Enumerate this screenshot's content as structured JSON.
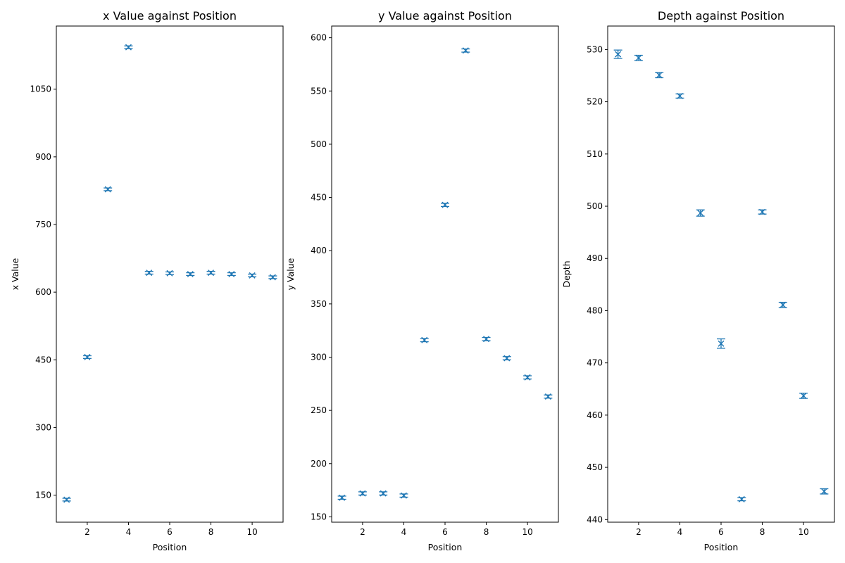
{
  "chart_data": [
    {
      "type": "scatter",
      "title": "x Value against Position",
      "xlabel": "Position",
      "ylabel": "x Value",
      "xlim": [
        0.5,
        11.5
      ],
      "ylim": [
        90,
        1190
      ],
      "xticks": [
        2,
        4,
        6,
        8,
        10
      ],
      "yticks": [
        150,
        300,
        450,
        600,
        750,
        900,
        1050
      ],
      "marker": "x with error bars",
      "color": "#1f77b4",
      "x": [
        1,
        2,
        3,
        4,
        5,
        6,
        7,
        8,
        9,
        10,
        11
      ],
      "y": [
        140,
        456,
        828,
        1143,
        643,
        642,
        640,
        643,
        640,
        637,
        633
      ],
      "yerr": [
        3,
        3,
        3,
        3,
        3,
        3,
        3,
        3,
        3,
        3,
        3
      ]
    },
    {
      "type": "scatter",
      "title": "y Value against Position",
      "xlabel": "Position",
      "ylabel": "y Value",
      "xlim": [
        0.5,
        11.5
      ],
      "ylim": [
        145,
        611
      ],
      "xticks": [
        2,
        4,
        6,
        8,
        10
      ],
      "yticks": [
        150,
        200,
        250,
        300,
        350,
        400,
        450,
        500,
        550,
        600
      ],
      "marker": "x with error bars",
      "color": "#1f77b4",
      "x": [
        1,
        2,
        3,
        4,
        5,
        6,
        7,
        8,
        9,
        10,
        11
      ],
      "y": [
        168,
        172,
        172,
        170,
        316,
        443,
        588,
        317,
        299,
        281,
        263
      ],
      "yerr": [
        1.5,
        1.5,
        1.5,
        1.5,
        1.5,
        1.5,
        1.5,
        1.5,
        1.5,
        1.5,
        1.5
      ]
    },
    {
      "type": "scatter",
      "title": "Depth against Position",
      "xlabel": "Position",
      "ylabel": "Depth",
      "xlim": [
        0.5,
        11.5
      ],
      "ylim": [
        439.5,
        534.5
      ],
      "xticks": [
        2,
        4,
        6,
        8,
        10
      ],
      "yticks": [
        440,
        450,
        460,
        470,
        480,
        490,
        500,
        510,
        520,
        530
      ],
      "marker": "x with error bars",
      "color": "#1f77b4",
      "x": [
        1,
        2,
        3,
        4,
        5,
        6,
        7,
        8,
        9,
        10,
        11
      ],
      "y": [
        529.1,
        528.4,
        525.1,
        521.1,
        498.7,
        473.7,
        443.9,
        498.9,
        481.1,
        463.7,
        445.4
      ],
      "yerr": [
        0.8,
        0.5,
        0.5,
        0.4,
        0.6,
        0.9,
        0.3,
        0.4,
        0.5,
        0.5,
        0.5
      ]
    }
  ]
}
